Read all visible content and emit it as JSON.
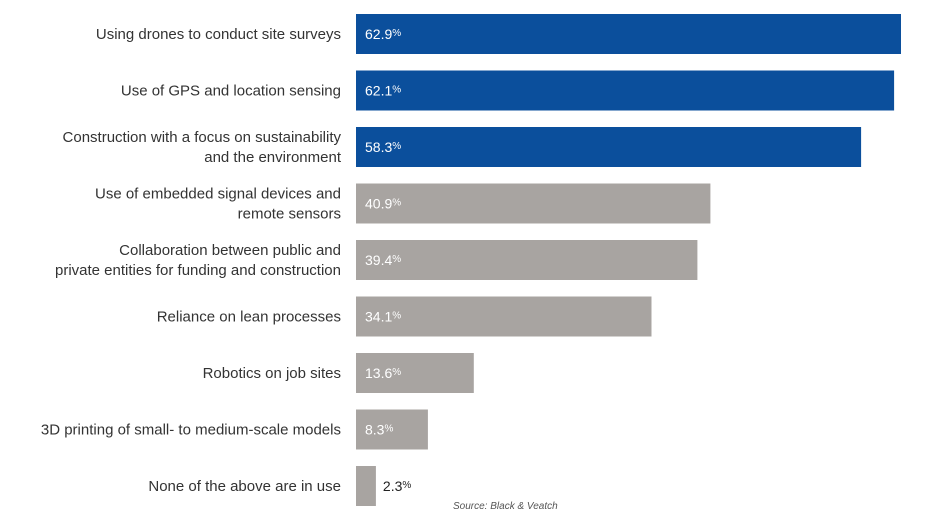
{
  "chart_data": {
    "type": "bar",
    "orientation": "horizontal",
    "categories": [
      [
        "Using drones to conduct site surveys"
      ],
      [
        "Use of GPS and location sensing"
      ],
      [
        "Construction with a focus on sustainability",
        "and the environment"
      ],
      [
        "Use of embedded signal devices and",
        "remote sensors"
      ],
      [
        "Collaboration between public and",
        "private entities for funding and construction"
      ],
      [
        "Reliance on lean processes"
      ],
      [
        "Robotics on job sites"
      ],
      [
        "3D printing of small- to medium-scale models"
      ],
      [
        "None of the above are in use"
      ]
    ],
    "values": [
      62.9,
      62.1,
      58.3,
      40.9,
      39.4,
      34.1,
      13.6,
      8.3,
      2.3
    ],
    "value_labels": [
      "62.9",
      "62.1",
      "58.3",
      "40.9",
      "39.4",
      "34.1",
      "13.6",
      "8.3",
      "2.3"
    ],
    "value_unit": "%",
    "highlighted_count": 3,
    "colors": {
      "highlight": "#0b4f9c",
      "normal": "#a8a4a1",
      "label_inside": "#ffffff",
      "label_outside": "#222222"
    },
    "xlim": [
      0,
      66
    ],
    "grid": false,
    "legend": "none",
    "source": "Source: Black & Veatch"
  }
}
